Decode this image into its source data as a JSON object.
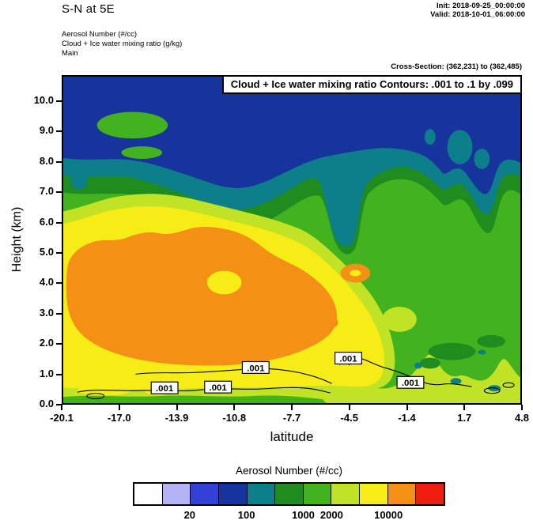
{
  "header": {
    "title": "S-N at 5E",
    "init": "Init: 2018-09-25_00:00:00",
    "valid": "Valid: 2018-10-01_06:00:00",
    "field_lines": [
      "Aerosol Number  (#/cc)",
      "Cloud + Ice water mixing ratio   (g/kg)",
      "Main"
    ],
    "cross_section": "Cross-Section: (362,231) to (362,485)"
  },
  "plot": {
    "overlay_title": "Cloud + Ice water mixing ratio Contours: .001 to .1 by .099",
    "contour_label": ".001"
  },
  "axes": {
    "x": {
      "label": "latitude",
      "ticks": [
        "-20.1",
        "-17.0",
        "-13.9",
        "-10.8",
        "-7.7",
        "-4.5",
        "-1.4",
        "1.7",
        "4.8"
      ]
    },
    "y": {
      "label": "Height (km)",
      "ticks": [
        "0.0",
        "1.0",
        "2.0",
        "3.0",
        "4.0",
        "5.0",
        "6.0",
        "7.0",
        "8.0",
        "9.0",
        "10.0"
      ]
    }
  },
  "colorbar": {
    "title": "Aerosol Number  (#/cc)",
    "colors": [
      "#ffffff",
      "#b3b3f5",
      "#3342d6",
      "#16349c",
      "#0c7f8a",
      "#1f8c1f",
      "#42b21e",
      "#c2e226",
      "#f6ec16",
      "#f59016",
      "#ee1d10"
    ],
    "labels": [
      {
        "text": "20",
        "index": 2
      },
      {
        "text": "100",
        "index": 4
      },
      {
        "text": "1000",
        "index": 6
      },
      {
        "text": "2000",
        "index": 7
      },
      {
        "text": "10000",
        "index": 9
      }
    ]
  },
  "palette": {
    "white": "#ffffff",
    "lavender": "#b3b3f5",
    "blue": "#3342d6",
    "navy": "#16349c",
    "teal": "#0c7f8a",
    "dark_green": "#1f8c1f",
    "green": "#42b21e",
    "chartreuse": "#c2e226",
    "yellow": "#f6ec16",
    "orange": "#f59016",
    "red": "#ee1d10",
    "black": "#000000"
  },
  "chart_data": {
    "type": "heatmap",
    "subtype": "filled-contour-vertical-cross-section",
    "title": "S-N at 5E",
    "overlay_title": "Cloud + Ice water mixing ratio Contours: .001 to .1 by .099",
    "fill_variable": "Aerosol Number (#/cc)",
    "overlay_variable": "Cloud + Ice water mixing ratio (g/kg)",
    "overlay_contours": {
      "start": 0.001,
      "end": 0.1,
      "interval": 0.099,
      "levels": [
        0.001,
        0.1
      ],
      "line_color": "#000000"
    },
    "xlabel": "latitude",
    "ylabel": "Height (km)",
    "xlim": [
      -20.1,
      4.8
    ],
    "ylim": [
      0.0,
      10.8
    ],
    "x_ticks": [
      -20.1,
      -17.0,
      -13.9,
      -10.8,
      -7.7,
      -4.5,
      -1.4,
      1.7,
      4.8
    ],
    "y_ticks": [
      0.0,
      1.0,
      2.0,
      3.0,
      4.0,
      5.0,
      6.0,
      7.0,
      8.0,
      9.0,
      10.0
    ],
    "fill_levels": [
      10,
      20,
      50,
      100,
      500,
      1000,
      2000,
      5000,
      10000,
      20000
    ],
    "fill_colors": [
      "#ffffff",
      "#b3b3f5",
      "#3342d6",
      "#16349c",
      "#0c7f8a",
      "#1f8c1f",
      "#42b21e",
      "#c2e226",
      "#f6ec16",
      "#f59016",
      "#ee1d10"
    ],
    "colorbar_labeled_levels": [
      20,
      100,
      1000,
      2000,
      10000
    ],
    "cross_section": "Cross-Section: (362,231) to (362,485)",
    "init_time": "2018-09-25_00:00:00",
    "valid_time": "2018-10-01_06:00:00",
    "grid": false,
    "legend_position": "bottom",
    "features": [
      {
        "value_range_per_cc": [
          10000,
          20000
        ],
        "color": "orange",
        "description": "aerosol-rich boundary-layer plume core",
        "lat_range": [
          -19.9,
          -7.0
        ],
        "height_km_range": [
          0.9,
          5.8
        ]
      },
      {
        "value_range_per_cc": [
          5000,
          10000
        ],
        "color": "yellow",
        "description": "broad plume envelope in southern half",
        "lat_range": [
          -20.1,
          -3.0
        ],
        "height_km_range": [
          0.4,
          6.3
        ]
      },
      {
        "value_range_per_cc": [
          2000,
          5000
        ],
        "color": "chartreuse",
        "description": "envelope fringe and shallow northern surface layer",
        "lat_range": [
          -20.1,
          4.8
        ],
        "height_km_range": [
          0.0,
          6.9
        ]
      },
      {
        "value_range_per_cc": [
          1000,
          2000
        ],
        "color": "green",
        "description": "mid-troposphere background, dominant north of -4.5",
        "lat_range": [
          -20.1,
          4.8
        ],
        "height_km_range": [
          0.0,
          8.2
        ]
      },
      {
        "value_range_per_cc": [
          100,
          500
        ],
        "color": "teal",
        "description": "transition band near 7-8 km and plume descending to 5.2 km near lat -5",
        "lat_range": [
          -20.1,
          4.8
        ],
        "height_km_range": [
          5.2,
          8.6
        ]
      },
      {
        "value_range_per_cc": [
          50,
          100
        ],
        "color": "navy",
        "description": "clean upper troposphere",
        "lat_range": [
          -20.1,
          4.8
        ],
        "height_km_range": [
          7.5,
          10.8
        ]
      },
      {
        "value_g_per_kg": 0.001,
        "color": "black",
        "description": "cloud + ice mixing ratio 0.001 g/kg contour lines in lowest 1.7 km"
      }
    ],
    "contour_label_positions": [
      {
        "label": ".001",
        "lat": -14.6,
        "height_km": 0.5
      },
      {
        "label": ".001",
        "lat": -11.7,
        "height_km": 0.5
      },
      {
        "label": ".001",
        "lat": -9.6,
        "height_km": 1.2
      },
      {
        "label": ".001",
        "lat": -4.6,
        "height_km": 1.5
      },
      {
        "label": ".001",
        "lat": -1.2,
        "height_km": 0.7
      }
    ]
  }
}
